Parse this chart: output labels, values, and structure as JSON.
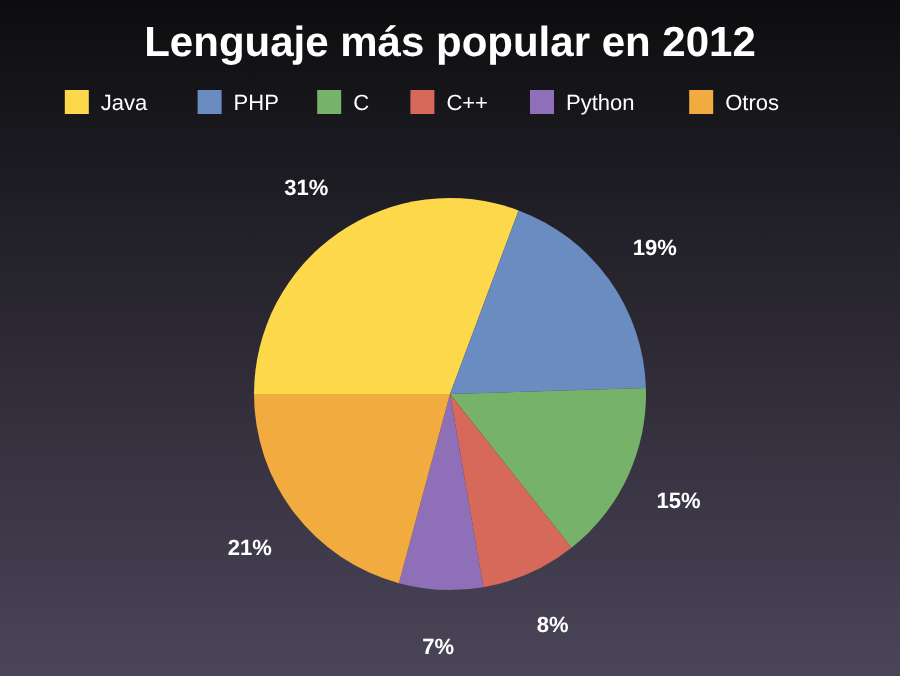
{
  "chart_data": {
    "type": "pie",
    "title": "Lenguaje más popular en 2012",
    "categories": [
      "Java",
      "PHP",
      "C",
      "C++",
      "Python",
      "Otros"
    ],
    "values": [
      31,
      19,
      15,
      8,
      7,
      21
    ],
    "colors": [
      "#fdd84a",
      "#6b8cc0",
      "#77b26b",
      "#d6695a",
      "#8f70b8",
      "#f2ab3f"
    ],
    "value_labels": [
      "31%",
      "19%",
      "15%",
      "8%",
      "7%",
      "21%"
    ],
    "legend": "top"
  }
}
